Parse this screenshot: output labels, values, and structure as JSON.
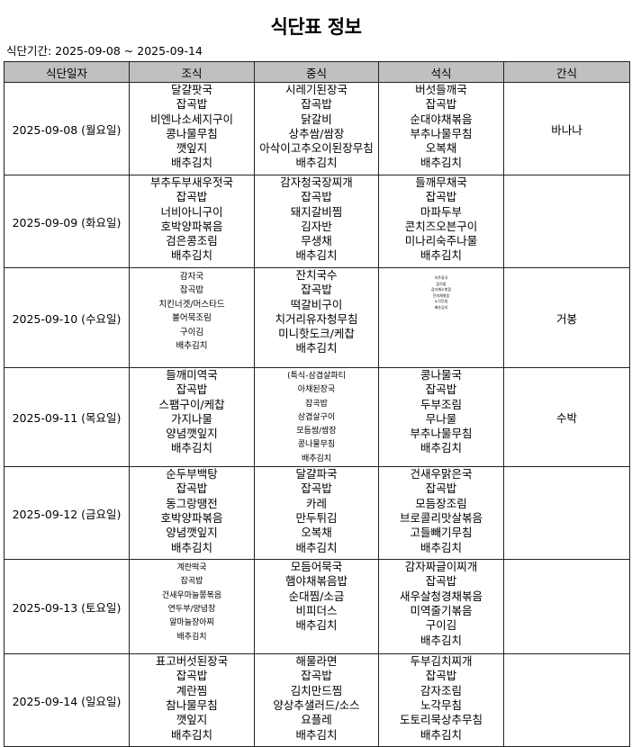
{
  "title": "식단표 정보",
  "period": "식단기간: 2025-09-08 ~ 2025-09-14",
  "headers": [
    "식단일자",
    "조식",
    "중식",
    "석식",
    "간식"
  ],
  "rows": [
    {
      "date": "2025-09-08 (월요일)",
      "breakfast": [
        "달걀팟국",
        "잡곡밥",
        "비엔나소세지구이",
        "콩나물무침",
        "깻잎지",
        "배추김치"
      ],
      "lunch": [
        "시레기된장국",
        "잡곡밥",
        "닭갈비",
        "상추쌈/쌈장",
        "아삭이고추오이된장무침",
        "배추김치"
      ],
      "dinner": [
        "버섯들깨국",
        "잡곡밥",
        "순대야채볶음",
        "부추나물무침",
        "오복채",
        "배추김치"
      ],
      "snack": "바나나"
    },
    {
      "date": "2025-09-09 (화요일)",
      "breakfast": [
        "부추두부새우젓국",
        "잡곡밥",
        "너비아니구이",
        "호박양파볶음",
        "검은콩조림",
        "배추김치"
      ],
      "lunch": [
        "감자청국장찌개",
        "잡곡밥",
        "돼지갈비찜",
        "김자반",
        "무생채",
        "배추김치"
      ],
      "dinner": [
        "들깨무채국",
        "잡곡밥",
        "마파두부",
        "콘치즈오븐구이",
        "미나리숙주나물",
        "배추김치"
      ],
      "snack": ""
    },
    {
      "date": "2025-09-10 (수요일)",
      "breakfast": [
        "감자국",
        "잡곡밥",
        "치킨너겟/머스타드",
        "볼어묵조림",
        "구이김",
        "배추김치"
      ],
      "lunch": [
        "잔치국수",
        "잡곡밥",
        "떡갈비구이",
        "치거리유자청무침",
        "미니핫도크/케찹",
        "배추김치"
      ],
      "dinner": [
        "숙주장국",
        "잡곡밥",
        "감자채소볶음",
        "진미채볶음",
        "노각무침",
        "배추김치"
      ],
      "snack": "거봉"
    },
    {
      "date": "2025-09-11 (목요일)",
      "breakfast": [
        "들깨미역국",
        "잡곡밥",
        "스팸구이/케찹",
        "가지나물",
        "양념깻잎지",
        "배추김치"
      ],
      "lunch": [
        "(특식-삼겹살파티",
        "아채된장국",
        "잡곡밥",
        "삼겹살구이",
        "모듬쌈/쌈장",
        "콩나물무침",
        "배추김치"
      ],
      "dinner": [
        "콩나물국",
        "잡곡밥",
        "두부조림",
        "무나물",
        "부추나물무침",
        "배추김치"
      ],
      "snack": "수박"
    },
    {
      "date": "2025-09-12 (금요일)",
      "breakfast": [
        "순두부백탕",
        "잡곡밥",
        "동그랑땡전",
        "호박양파볶음",
        "양념깻잎지",
        "배추김치"
      ],
      "lunch": [
        "달걀파국",
        "잡곡밥",
        "카레",
        "만두튀김",
        "오복채",
        "배추김치"
      ],
      "dinner": [
        "건새우맑은국",
        "잡곡밥",
        "모듬장조림",
        "브로콜리맛살볶음",
        "고들빼기무침",
        "배추김치"
      ],
      "snack": ""
    },
    {
      "date": "2025-09-13 (토요일)",
      "breakfast": [
        "계란떡국",
        "잡곡밥",
        "건새우마늘쫑볶음",
        "연두부/양념장",
        "알마늘장아찌",
        "배추김치"
      ],
      "lunch": [
        "모듬어묵국",
        "햄야채볶음밥",
        "순대찜/소금",
        "비피더스",
        "배추김치"
      ],
      "dinner": [
        "감자짜글이찌개",
        "잡곡밥",
        "새우살청경채볶음",
        "미역줄기볶음",
        "구이김",
        "배추김치"
      ],
      "snack": ""
    },
    {
      "date": "2025-09-14 (일요일)",
      "breakfast": [
        "표고버섯된장국",
        "잡곡밥",
        "계란찜",
        "참나물무침",
        "깻잎지",
        "배추김치"
      ],
      "lunch": [
        "해물라면",
        "잡곡밥",
        "김치만드찜",
        "양상추샐러드/소스",
        "요플레",
        "배추김치"
      ],
      "dinner": [
        "두부김치찌개",
        "잡곡밥",
        "감자조림",
        "노각무침",
        "도토리묵상추무침",
        "배추김치"
      ],
      "snack": ""
    }
  ]
}
